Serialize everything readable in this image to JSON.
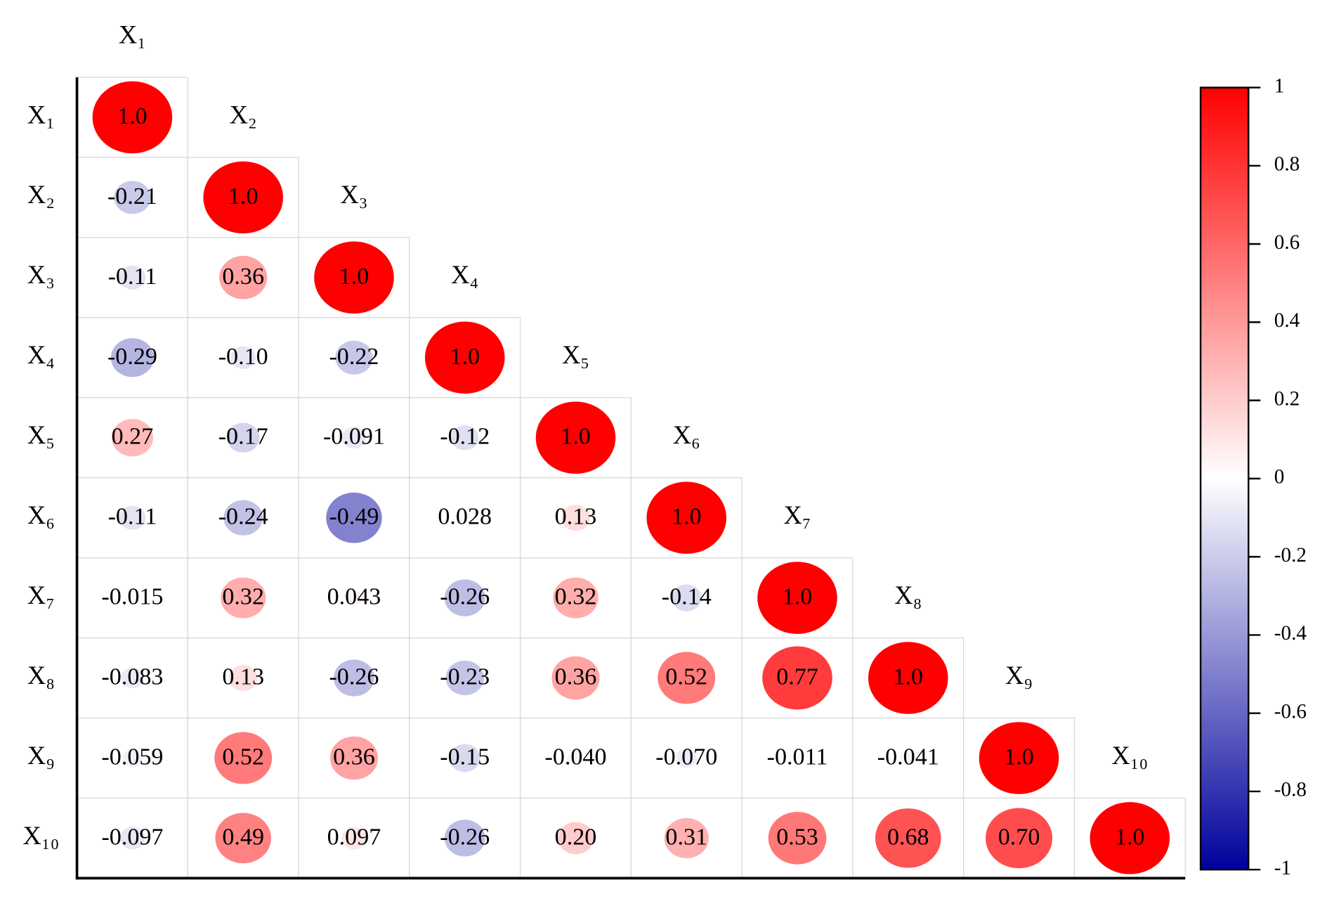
{
  "chart_data": {
    "type": "correlation",
    "labels": [
      "X₁",
      "X₂",
      "X₃",
      "X₄",
      "X₅",
      "X₆",
      "X₇",
      "X₈",
      "X₉",
      "X₁₀"
    ],
    "values": [
      [
        1.0
      ],
      [
        -0.21,
        1.0
      ],
      [
        -0.11,
        0.36,
        1.0
      ],
      [
        -0.29,
        -0.1,
        -0.22,
        1.0
      ],
      [
        0.27,
        -0.17,
        -0.091,
        -0.12,
        1.0
      ],
      [
        -0.11,
        -0.24,
        -0.49,
        0.028,
        0.13,
        1.0
      ],
      [
        -0.015,
        0.32,
        0.043,
        -0.26,
        0.32,
        -0.14,
        1.0
      ],
      [
        -0.083,
        0.13,
        -0.26,
        -0.23,
        0.36,
        0.52,
        0.77,
        1.0
      ],
      [
        -0.059,
        0.52,
        0.36,
        -0.15,
        -0.04,
        -0.07,
        -0.011,
        -0.041,
        1.0
      ],
      [
        -0.097,
        0.49,
        0.097,
        -0.26,
        0.2,
        0.31,
        0.53,
        0.68,
        0.7,
        1.0
      ]
    ],
    "value_labels": [
      [
        "1.0"
      ],
      [
        "-0.21",
        "1.0"
      ],
      [
        "-0.11",
        "0.36",
        "1.0"
      ],
      [
        "-0.29",
        "-0.10",
        "-0.22",
        "1.0"
      ],
      [
        "0.27",
        "-0.17",
        "-0.091",
        "-0.12",
        "1.0"
      ],
      [
        "-0.11",
        "-0.24",
        "-0.49",
        "0.028",
        "0.13",
        "1.0"
      ],
      [
        "-0.015",
        "0.32",
        "0.043",
        "-0.26",
        "0.32",
        "-0.14",
        "1.0"
      ],
      [
        "-0.083",
        "0.13",
        "-0.26",
        "-0.23",
        "0.36",
        "0.52",
        "0.77",
        "1.0"
      ],
      [
        "-0.059",
        "0.52",
        "0.36",
        "-0.15",
        "-0.040",
        "-0.070",
        "-0.011",
        "-0.041",
        "1.0"
      ],
      [
        "-0.097",
        "0.49",
        "0.097",
        "-0.26",
        "0.20",
        "0.31",
        "0.53",
        "0.68",
        "0.70",
        "1.0"
      ]
    ],
    "colormap": [
      "#00009c",
      "#ffffff",
      "#ff0000"
    ],
    "clim": [
      -1,
      1
    ],
    "cticks": [
      1,
      0.8,
      0.6,
      0.4,
      0.2,
      0,
      -0.2,
      -0.4,
      -0.6,
      -0.8,
      -1
    ]
  }
}
